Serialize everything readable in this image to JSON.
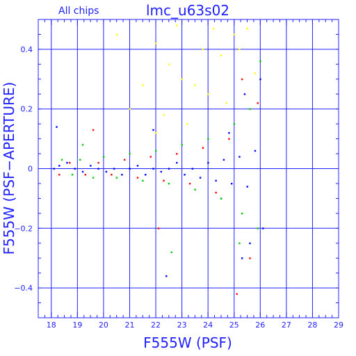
{
  "chart_data": {
    "type": "scatter",
    "title": "lmc_u63s02",
    "subtitle": "All chips",
    "xlabel": "F555W (PSF)",
    "ylabel": "F555W (PSF−APERTURE)",
    "xlim": [
      17.5,
      29
    ],
    "ylim": [
      -0.5,
      0.5
    ],
    "x_ticks": [
      18,
      19,
      20,
      21,
      22,
      23,
      24,
      25,
      26,
      27,
      28,
      29
    ],
    "y_ticks": [
      -0.4,
      -0.2,
      0,
      0.2,
      0.4
    ],
    "x_tick_labels": [
      "18",
      "19",
      "20",
      "21",
      "22",
      "23",
      "24",
      "25",
      "26",
      "27",
      "28",
      "29"
    ],
    "y_tick_labels": [
      "−0.4",
      "−0.2",
      "0",
      "0.2",
      "0.4"
    ],
    "grid": true,
    "colors": {
      "frame": "#2020ff",
      "grid": "#2020ff",
      "text": "#2020ff",
      "chips": [
        "#0000ff",
        "#00cc00",
        "#ff0000",
        "#ffff00"
      ]
    },
    "series": [
      {
        "color": "#0000ff",
        "points": [
          [
            18.1,
            0.0
          ],
          [
            18.3,
            0.01
          ],
          [
            18.6,
            0.02
          ],
          [
            18.9,
            0.0
          ],
          [
            19.2,
            -0.01
          ],
          [
            19.5,
            0.01
          ],
          [
            19.8,
            0.0
          ],
          [
            20.1,
            -0.01
          ],
          [
            20.4,
            0.0
          ],
          [
            20.7,
            -0.02
          ],
          [
            21.0,
            0.0
          ],
          [
            21.3,
            0.01
          ],
          [
            21.6,
            -0.02
          ],
          [
            21.9,
            0.0
          ],
          [
            22.2,
            -0.01
          ],
          [
            22.5,
            0.0
          ],
          [
            22.8,
            0.02
          ],
          [
            23.1,
            -0.02
          ],
          [
            23.4,
            0.0
          ],
          [
            23.7,
            -0.03
          ],
          [
            24.0,
            0.02
          ],
          [
            24.3,
            -0.04
          ],
          [
            24.6,
            0.03
          ],
          [
            24.9,
            -0.05
          ],
          [
            25.2,
            0.04
          ],
          [
            25.5,
            -0.06
          ],
          [
            25.8,
            0.06
          ],
          [
            26.0,
            0.3
          ],
          [
            26.1,
            -0.2
          ],
          [
            25.4,
            0.25
          ],
          [
            25.6,
            -0.25
          ],
          [
            25.3,
            -0.3
          ],
          [
            24.8,
            0.12
          ],
          [
            24.5,
            -0.1
          ],
          [
            22.4,
            -0.36
          ],
          [
            21.9,
            0.13
          ],
          [
            18.2,
            0.14
          ]
        ]
      },
      {
        "color": "#00cc00",
        "points": [
          [
            18.4,
            0.03
          ],
          [
            18.8,
            -0.02
          ],
          [
            19.1,
            0.03
          ],
          [
            19.6,
            -0.03
          ],
          [
            20.0,
            0.04
          ],
          [
            20.5,
            -0.03
          ],
          [
            21.0,
            0.05
          ],
          [
            21.5,
            -0.04
          ],
          [
            22.0,
            0.06
          ],
          [
            22.5,
            -0.05
          ],
          [
            23.0,
            0.08
          ],
          [
            23.5,
            -0.07
          ],
          [
            24.0,
            0.1
          ],
          [
            24.5,
            -0.1
          ],
          [
            25.0,
            0.15
          ],
          [
            25.3,
            -0.15
          ],
          [
            25.6,
            0.2
          ],
          [
            25.9,
            -0.2
          ],
          [
            25.2,
            -0.25
          ],
          [
            26.0,
            0.36
          ],
          [
            22.6,
            -0.28
          ],
          [
            19.2,
            0.08
          ]
        ]
      },
      {
        "color": "#ff0000",
        "points": [
          [
            18.3,
            -0.02
          ],
          [
            18.7,
            0.02
          ],
          [
            19.3,
            -0.02
          ],
          [
            19.8,
            0.02
          ],
          [
            20.3,
            -0.02
          ],
          [
            20.8,
            0.03
          ],
          [
            21.3,
            -0.03
          ],
          [
            21.8,
            0.04
          ],
          [
            22.3,
            -0.04
          ],
          [
            22.8,
            0.05
          ],
          [
            23.3,
            -0.05
          ],
          [
            23.8,
            0.07
          ],
          [
            24.3,
            -0.08
          ],
          [
            24.8,
            0.1
          ],
          [
            25.3,
            0.3
          ],
          [
            25.6,
            -0.3
          ],
          [
            25.9,
            0.22
          ],
          [
            25.1,
            -0.42
          ],
          [
            22.1,
            -0.2
          ],
          [
            19.6,
            0.13
          ]
        ]
      },
      {
        "color": "#ffff00",
        "points": [
          [
            22.0,
            0.42
          ],
          [
            22.5,
            0.35
          ],
          [
            23.0,
            0.3
          ],
          [
            23.5,
            0.28
          ],
          [
            24.0,
            0.25
          ],
          [
            24.5,
            0.38
          ],
          [
            25.0,
            0.45
          ],
          [
            25.5,
            0.47
          ],
          [
            21.5,
            0.28
          ],
          [
            21.0,
            0.2
          ],
          [
            22.3,
            0.18
          ],
          [
            23.8,
            0.4
          ],
          [
            24.7,
            0.22
          ],
          [
            25.8,
            0.32
          ],
          [
            20.5,
            0.45
          ],
          [
            22.8,
            0.48
          ],
          [
            24.2,
            0.47
          ],
          [
            25.2,
            0.4
          ],
          [
            23.2,
            0.15
          ],
          [
            22.0,
            0.12
          ]
        ]
      }
    ]
  }
}
